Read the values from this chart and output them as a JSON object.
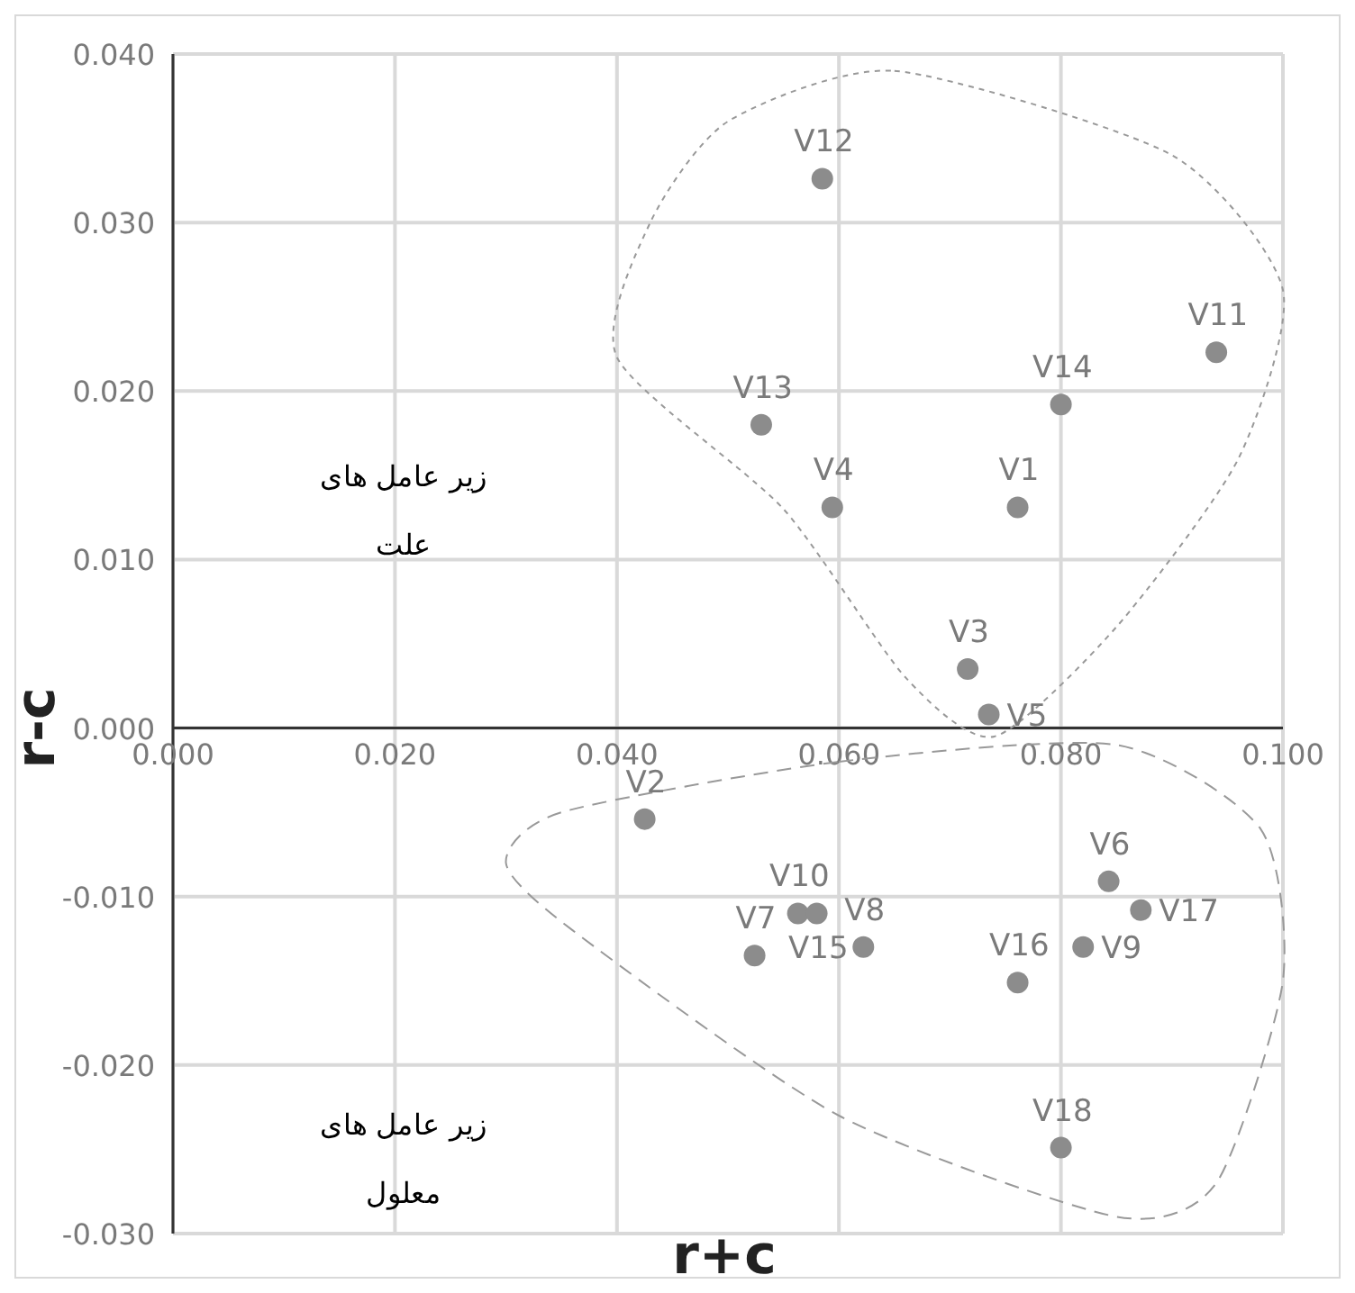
{
  "chart_data": {
    "type": "scatter",
    "xlabel": "r+c",
    "ylabel": "r-c",
    "xlim": [
      0,
      0.1
    ],
    "ylim": [
      -0.03,
      0.04
    ],
    "xticks": [
      {
        "value": 0,
        "label": "0.000"
      },
      {
        "value": 0.02,
        "label": "0.020"
      },
      {
        "value": 0.04,
        "label": "0.040"
      },
      {
        "value": 0.06,
        "label": "0.060"
      },
      {
        "value": 0.08,
        "label": "0.080"
      },
      {
        "value": 0.1,
        "label": "0.100"
      }
    ],
    "yticks": [
      {
        "value": -0.03,
        "label": "-0.030"
      },
      {
        "value": -0.02,
        "label": "-0.020"
      },
      {
        "value": -0.01,
        "label": "-0.010"
      },
      {
        "value": 0,
        "label": "0.000"
      },
      {
        "value": 0.01,
        "label": "0.010"
      },
      {
        "value": 0.02,
        "label": "0.020"
      },
      {
        "value": 0.03,
        "label": "0.030"
      },
      {
        "value": 0.04,
        "label": "0.040"
      }
    ],
    "grid": true,
    "marker": "circle",
    "series": [
      {
        "color": "#8c8c8c",
        "x": [
          0.0761,
          0.0425,
          0.0716,
          0.0594,
          0.0735,
          0.0843,
          0.0524,
          0.0622,
          0.082,
          0.0563,
          0.094,
          0.0585,
          0.053,
          0.08,
          0.058,
          0.0761,
          0.0872,
          0.08
        ],
        "values": [
          0.0131,
          -0.0054,
          0.0035,
          0.0131,
          0.0008,
          -0.0091,
          -0.0135,
          -0.013,
          -0.013,
          -0.011,
          0.0223,
          0.0326,
          0.018,
          0.0192,
          -0.011,
          -0.0151,
          -0.0108,
          -0.0249
        ]
      }
    ],
    "annotations": [
      {
        "text": "V1",
        "x": 0.0761,
        "y": 0.0131
      },
      {
        "text": "V2",
        "x": 0.0425,
        "y": -0.0054
      },
      {
        "text": "V3",
        "x": 0.0716,
        "y": 0.0035
      },
      {
        "text": "V4",
        "x": 0.0594,
        "y": 0.0131
      },
      {
        "text": "V5",
        "x": 0.0735,
        "y": 0.0008
      },
      {
        "text": "V6",
        "x": 0.0843,
        "y": -0.0091
      },
      {
        "text": "V7",
        "x": 0.0524,
        "y": -0.0135
      },
      {
        "text": "V8",
        "x": 0.0622,
        "y": -0.013
      },
      {
        "text": "V9",
        "x": 0.082,
        "y": -0.013
      },
      {
        "text": "V10",
        "x": 0.0563,
        "y": -0.011
      },
      {
        "text": "V11",
        "x": 0.094,
        "y": 0.0223
      },
      {
        "text": "V12",
        "x": 0.0585,
        "y": 0.0326
      },
      {
        "text": "V13",
        "x": 0.053,
        "y": 0.018
      },
      {
        "text": "V14",
        "x": 0.08,
        "y": 0.0192
      },
      {
        "text": "V15",
        "x": 0.058,
        "y": -0.011
      },
      {
        "text": "V16",
        "x": 0.0761,
        "y": -0.0151
      },
      {
        "text": "V17",
        "x": 0.0872,
        "y": -0.0108
      },
      {
        "text": "V18",
        "x": 0.08,
        "y": -0.0249
      },
      "زیر عامل های\nعلت",
      "زیر عامل های\nمعلول"
    ]
  }
}
